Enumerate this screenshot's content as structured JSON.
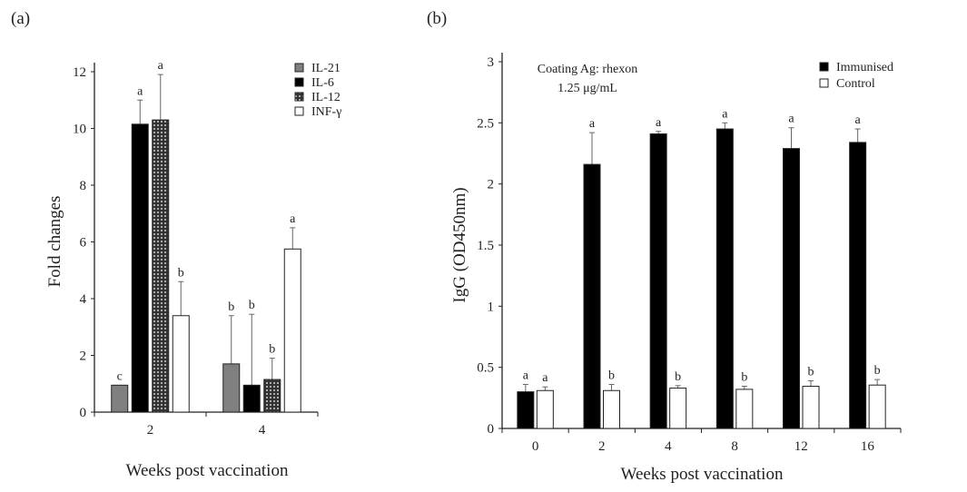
{
  "chart_data": [
    {
      "panel_label": "(a)",
      "type": "bar",
      "xlabel": "Weeks post vaccination",
      "ylabel": "Fold changes",
      "ylim": [
        0,
        12
      ],
      "yticks": [
        0,
        2,
        4,
        6,
        8,
        10,
        12
      ],
      "categories": [
        "2",
        "4"
      ],
      "legend_placement": "top-right",
      "grid": false,
      "series": [
        {
          "name": "IL-21",
          "color": "#808080",
          "fill": "solid",
          "values": [
            0.95,
            1.7
          ],
          "error_top": [
            0.95,
            3.4
          ],
          "letters": [
            "c",
            "b"
          ]
        },
        {
          "name": "IL-6",
          "color": "#000000",
          "fill": "solid",
          "values": [
            10.15,
            0.95
          ],
          "error_top": [
            11.0,
            3.45
          ],
          "letters": [
            "a",
            "b"
          ]
        },
        {
          "name": "IL-12",
          "color": "#555555",
          "fill": "dotted-pattern",
          "values": [
            10.3,
            1.15
          ],
          "error_top": [
            11.9,
            1.9
          ],
          "letters": [
            "a",
            "b"
          ]
        },
        {
          "name": "INF-γ",
          "color": "#ffffff",
          "fill": "solid",
          "values": [
            3.4,
            5.75
          ],
          "error_top": [
            4.6,
            6.5
          ],
          "letters": [
            "b",
            "a"
          ]
        }
      ]
    },
    {
      "panel_label": "(b)",
      "type": "bar",
      "xlabel": "Weeks post vaccination",
      "ylabel": "IgG (OD450nm)",
      "ylim": [
        0,
        3
      ],
      "yticks": [
        "0",
        "0.5",
        "1",
        "1.5",
        "2",
        "2.5",
        "3"
      ],
      "categories": [
        "0",
        "2",
        "4",
        "8",
        "12",
        "16"
      ],
      "annotation": [
        "Coating Ag: rhexon",
        "1.25 μg/mL"
      ],
      "legend_placement": "top-right",
      "grid": false,
      "series": [
        {
          "name": "Immunised",
          "color": "#000000",
          "values": [
            0.3,
            2.16,
            2.41,
            2.45,
            2.29,
            2.34
          ],
          "error_top": [
            0.36,
            2.42,
            2.43,
            2.5,
            2.46,
            2.45
          ],
          "letters": [
            "a",
            "a",
            "a",
            "a",
            "a",
            "a"
          ]
        },
        {
          "name": "Control",
          "color": "#ffffff",
          "values": [
            0.31,
            0.31,
            0.33,
            0.32,
            0.345,
            0.355
          ],
          "error_top": [
            0.34,
            0.36,
            0.35,
            0.345,
            0.39,
            0.4
          ],
          "letters": [
            "a",
            "b",
            "b",
            "b",
            "b",
            "b"
          ]
        }
      ]
    }
  ]
}
